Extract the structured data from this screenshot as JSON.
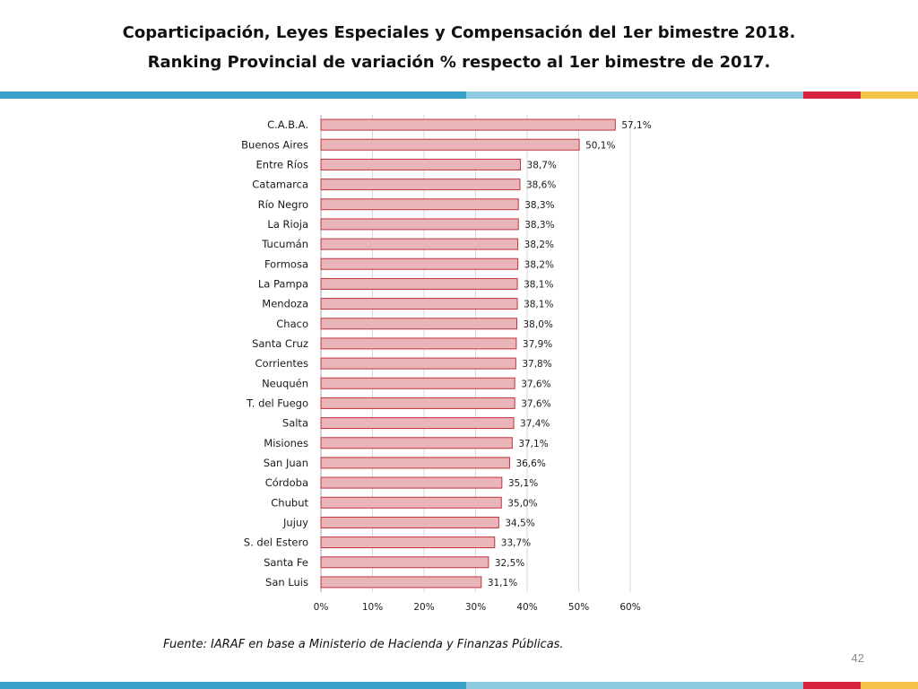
{
  "slide": {
    "title_line1": "Coparticipación, Leyes Especiales y Compensación del 1er bimestre 2018.",
    "title_line2": "Ranking Provincial de variación % respecto al 1er bimestre de 2017.",
    "source": "Fuente: IARAF en base a Ministerio de Hacienda y Finanzas Públicas.",
    "page_number": "42"
  },
  "colors": {
    "band_blue": "#3aa1c8",
    "band_light_blue": "#8fcbe0",
    "band_red": "#d6233e",
    "band_yellow": "#f5c24a",
    "bar_fill": "#eab5b8",
    "bar_stroke": "#c0343f"
  },
  "chart_data": {
    "type": "bar",
    "orientation": "horizontal",
    "categories": [
      "C.A.B.A.",
      "Buenos Aires",
      "Entre Ríos",
      "Catamarca",
      "Río Negro",
      "La Rioja",
      "Tucumán",
      "Formosa",
      "La Pampa",
      "Mendoza",
      "Chaco",
      "Santa Cruz",
      "Corrientes",
      "Neuquén",
      "T. del Fuego",
      "Salta",
      "Misiones",
      "San Juan",
      "Córdoba",
      "Chubut",
      "Jujuy",
      "S. del Estero",
      "Santa Fe",
      "San Luis"
    ],
    "values": [
      57.1,
      50.1,
      38.7,
      38.6,
      38.3,
      38.3,
      38.2,
      38.2,
      38.1,
      38.1,
      38.0,
      37.9,
      37.8,
      37.6,
      37.6,
      37.4,
      37.1,
      36.6,
      35.1,
      35.0,
      34.5,
      33.7,
      32.5,
      31.1
    ],
    "data_labels": [
      "57,1%",
      "50,1%",
      "38,7%",
      "38,6%",
      "38,3%",
      "38,3%",
      "38,2%",
      "38,2%",
      "38,1%",
      "38,1%",
      "38,0%",
      "37,9%",
      "37,8%",
      "37,6%",
      "37,6%",
      "37,4%",
      "37,1%",
      "36,6%",
      "35,1%",
      "35,0%",
      "34,5%",
      "33,7%",
      "32,5%",
      "31,1%"
    ],
    "x_ticks": [
      0,
      10,
      20,
      30,
      40,
      50,
      60
    ],
    "x_tick_labels": [
      "0%",
      "10%",
      "20%",
      "30%",
      "40%",
      "50%",
      "60%"
    ],
    "xlim": [
      0,
      60
    ],
    "grid": "vertical",
    "legend": "none"
  }
}
